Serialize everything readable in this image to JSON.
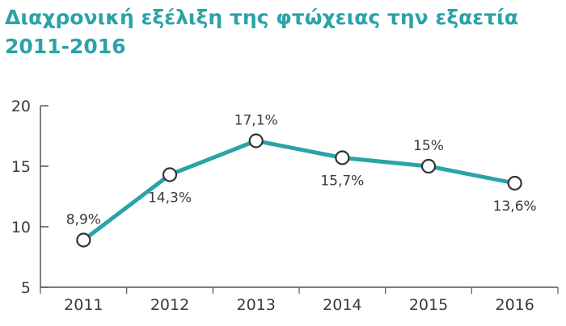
{
  "title_line1": "Διαχρονική εξέλιξη της φτώχειας την εξαετία",
  "title_line2": "2011-2016",
  "colors": {
    "title": "#2aa3a8",
    "line": "#2aa3a8",
    "axis": "#555555",
    "text": "#3a3a3a",
    "marker_fill": "#ffffff",
    "marker_stroke": "#333333"
  },
  "chart_data": {
    "type": "line",
    "title": "Διαχρονική εξέλιξη της φτώχειας την εξαετία 2011-2016",
    "xlabel": "",
    "ylabel": "",
    "categories": [
      "2011",
      "2012",
      "2013",
      "2014",
      "2015",
      "2016"
    ],
    "series": [
      {
        "values": [
          8.9,
          14.3,
          17.1,
          15.7,
          15.0,
          13.6
        ]
      }
    ],
    "data_labels": [
      "8,9%",
      "14,3%",
      "17,1%",
      "15,7%",
      "15%",
      "13,6%"
    ],
    "label_placement": [
      "above",
      "below",
      "above",
      "below",
      "above",
      "below"
    ],
    "yticks": [
      "20",
      "15",
      "10",
      "5"
    ],
    "ytick_values": [
      20,
      15,
      10,
      5
    ],
    "ylim": [
      5,
      20
    ],
    "grid": false,
    "legend": "none"
  }
}
